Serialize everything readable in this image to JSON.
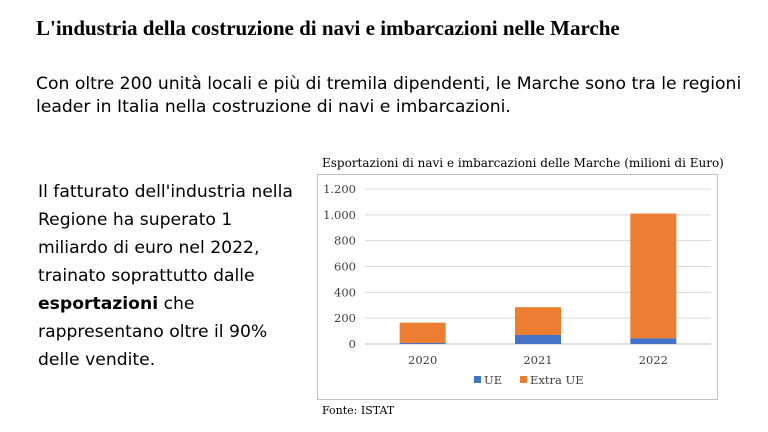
{
  "slide": {
    "title": "L'industria della costruzione di navi e imbarcazioni nelle Marche",
    "intro": "Con oltre 200 unità locali e più di tremila dipendenti, le Marche sono tra le regioni leader in Italia nella costruzione di navi e imbarcazioni.",
    "body_before": "Il fatturato dell'industria nella Regione ha superato 1 miliardo di euro nel 2022, trainato soprattutto dalle ",
    "body_bold": "esportazioni",
    "body_after": " che rappresentano oltre il 90% delle vendite.",
    "source": "Fonte: ISTAT"
  },
  "chart_data": {
    "type": "bar",
    "stacked": true,
    "title": "Esportazioni di navi e imbarcazioni delle Marche (milioni di Euro)",
    "xlabel": "",
    "ylabel": "",
    "categories": [
      "2020",
      "2021",
      "2022"
    ],
    "series": [
      {
        "name": "UE",
        "values": [
          8,
          70,
          45
        ],
        "color": "#4472C4"
      },
      {
        "name": "Extra UE",
        "values": [
          157,
          215,
          965
        ],
        "color": "#ED7D31"
      }
    ],
    "ylim": [
      0,
      1200
    ],
    "yticks": [
      0,
      200,
      400,
      600,
      800,
      1000,
      1200
    ],
    "ytick_labels": [
      "0",
      "200",
      "400",
      "600",
      "800",
      "1.000",
      "1.200"
    ],
    "grid": true,
    "legend_position": "bottom"
  }
}
